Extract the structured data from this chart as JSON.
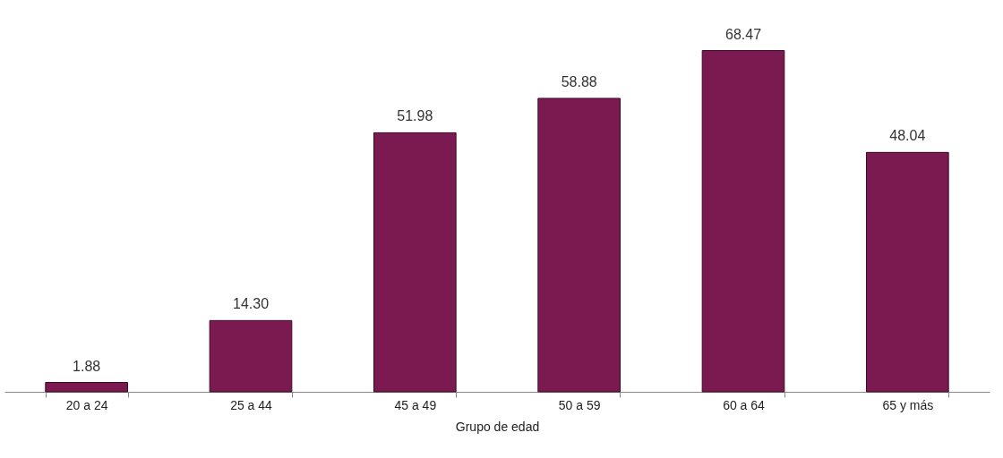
{
  "chart_data": {
    "type": "bar",
    "xlabel": "Grupo de edad",
    "categories": [
      "20 a 24",
      "25 a 44",
      "45 a 49",
      "50 a 59",
      "60 a 64",
      "65 y más"
    ],
    "values": [
      1.88,
      14.3,
      51.98,
      58.88,
      68.47,
      48.04
    ],
    "value_labels": [
      "1.88",
      "14.30",
      "51.98",
      "58.88",
      "68.47",
      "48.04"
    ],
    "color": "#7a1a50"
  }
}
